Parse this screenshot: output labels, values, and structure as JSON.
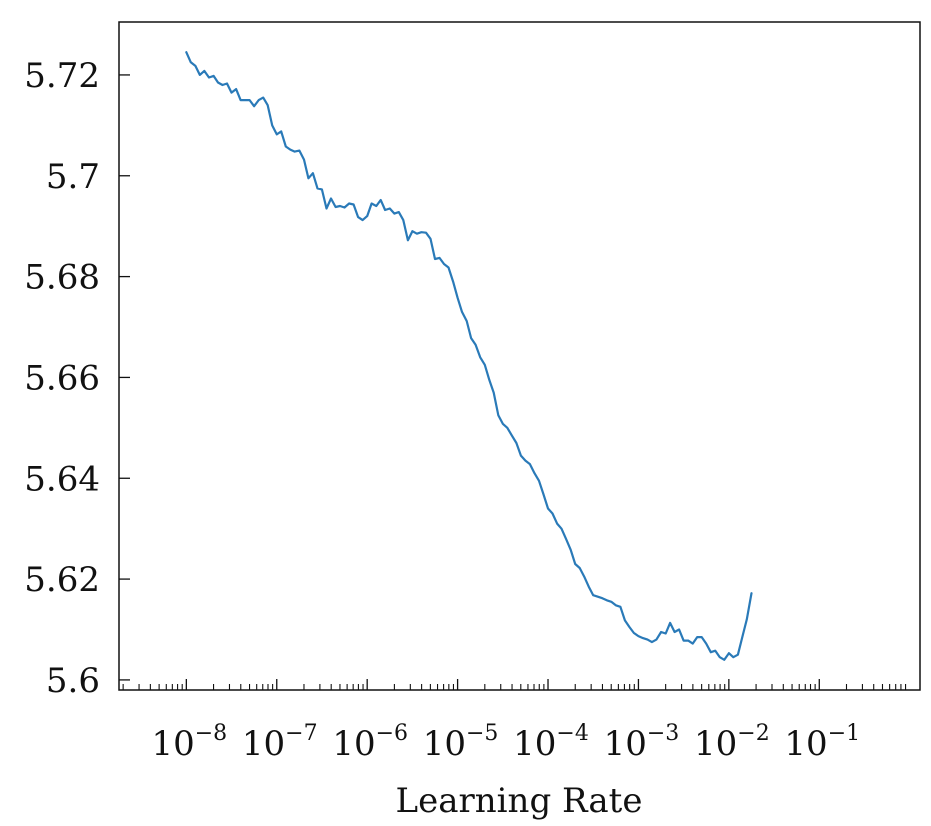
{
  "chart_data": {
    "type": "line",
    "title": "",
    "xlabel": "Learning Rate",
    "ylabel": "",
    "x_scale": "log",
    "xlim": [
      1.8e-09,
      1.3
    ],
    "ylim": [
      5.598,
      5.7305
    ],
    "grid": false,
    "x_ticks": [
      {
        "value": 1e-08,
        "base": "10",
        "exp": "−8"
      },
      {
        "value": 1e-07,
        "base": "10",
        "exp": "−7"
      },
      {
        "value": 1e-06,
        "base": "10",
        "exp": "−6"
      },
      {
        "value": 1e-05,
        "base": "10",
        "exp": "−5"
      },
      {
        "value": 0.0001,
        "base": "10",
        "exp": "−4"
      },
      {
        "value": 0.001,
        "base": "10",
        "exp": "−3"
      },
      {
        "value": 0.01,
        "base": "10",
        "exp": "−2"
      },
      {
        "value": 0.1,
        "base": "10",
        "exp": "−1"
      }
    ],
    "y_ticks": [
      {
        "value": 5.6,
        "label": "5.6"
      },
      {
        "value": 5.62,
        "label": "5.62"
      },
      {
        "value": 5.64,
        "label": "5.64"
      },
      {
        "value": 5.66,
        "label": "5.66"
      },
      {
        "value": 5.68,
        "label": "5.68"
      },
      {
        "value": 5.7,
        "label": "5.7"
      },
      {
        "value": 5.72,
        "label": "5.72"
      }
    ],
    "series": [
      {
        "color": "#2a7ab8",
        "points": [
          [
            1e-08,
            5.7245
          ],
          [
            1.12e-08,
            5.7225
          ],
          [
            1.26e-08,
            5.7218
          ],
          [
            1.41e-08,
            5.72
          ],
          [
            1.58e-08,
            5.7208
          ],
          [
            1.78e-08,
            5.7195
          ],
          [
            2e-08,
            5.7198
          ],
          [
            2.24e-08,
            5.7185
          ],
          [
            2.51e-08,
            5.718
          ],
          [
            2.82e-08,
            5.7183
          ],
          [
            3.16e-08,
            5.7165
          ],
          [
            3.55e-08,
            5.7172
          ],
          [
            3.98e-08,
            5.715
          ],
          [
            4.47e-08,
            5.715
          ],
          [
            5.01e-08,
            5.715
          ],
          [
            5.62e-08,
            5.7138
          ],
          [
            6.31e-08,
            5.715
          ],
          [
            7.08e-08,
            5.7155
          ],
          [
            7.94e-08,
            5.714
          ],
          [
            8.91e-08,
            5.71
          ],
          [
            1e-07,
            5.7082
          ],
          [
            1.12e-07,
            5.7088
          ],
          [
            1.26e-07,
            5.7058
          ],
          [
            1.41e-07,
            5.7052
          ],
          [
            1.58e-07,
            5.7048
          ],
          [
            1.78e-07,
            5.705
          ],
          [
            2e-07,
            5.7032
          ],
          [
            2.24e-07,
            5.6995
          ],
          [
            2.51e-07,
            5.7005
          ],
          [
            2.82e-07,
            5.6975
          ],
          [
            3.16e-07,
            5.6973
          ],
          [
            3.55e-07,
            5.6935
          ],
          [
            3.98e-07,
            5.6955
          ],
          [
            4.47e-07,
            5.6938
          ],
          [
            5.01e-07,
            5.694
          ],
          [
            5.62e-07,
            5.6937
          ],
          [
            6.31e-07,
            5.6945
          ],
          [
            7.08e-07,
            5.6943
          ],
          [
            7.94e-07,
            5.6918
          ],
          [
            8.91e-07,
            5.6912
          ],
          [
            1e-06,
            5.692
          ],
          [
            1.12e-06,
            5.6945
          ],
          [
            1.26e-06,
            5.694
          ],
          [
            1.41e-06,
            5.6952
          ],
          [
            1.58e-06,
            5.6932
          ],
          [
            1.78e-06,
            5.6935
          ],
          [
            2e-06,
            5.6925
          ],
          [
            2.24e-06,
            5.6928
          ],
          [
            2.51e-06,
            5.6912
          ],
          [
            2.82e-06,
            5.6872
          ],
          [
            3.16e-06,
            5.689
          ],
          [
            3.55e-06,
            5.6885
          ],
          [
            3.98e-06,
            5.6888
          ],
          [
            4.47e-06,
            5.6887
          ],
          [
            5.01e-06,
            5.6875
          ],
          [
            5.62e-06,
            5.6835
          ],
          [
            6.31e-06,
            5.6837
          ],
          [
            7.08e-06,
            5.6825
          ],
          [
            7.94e-06,
            5.6818
          ],
          [
            8.91e-06,
            5.679
          ],
          [
            1e-05,
            5.6758
          ],
          [
            1.12e-05,
            5.673
          ],
          [
            1.26e-05,
            5.6712
          ],
          [
            1.41e-05,
            5.6678
          ],
          [
            1.58e-05,
            5.6665
          ],
          [
            1.78e-05,
            5.664
          ],
          [
            2e-05,
            5.6625
          ],
          [
            2.24e-05,
            5.6595
          ],
          [
            2.51e-05,
            5.657
          ],
          [
            2.82e-05,
            5.6525
          ],
          [
            3.16e-05,
            5.6508
          ],
          [
            3.55e-05,
            5.65
          ],
          [
            3.98e-05,
            5.6485
          ],
          [
            4.47e-05,
            5.647
          ],
          [
            5.01e-05,
            5.6445
          ],
          [
            5.62e-05,
            5.6435
          ],
          [
            6.31e-05,
            5.6428
          ],
          [
            7.08e-05,
            5.641
          ],
          [
            7.94e-05,
            5.6395
          ],
          [
            8.91e-05,
            5.6368
          ],
          [
            0.0001,
            5.634
          ],
          [
            0.000112,
            5.633
          ],
          [
            0.000126,
            5.631
          ],
          [
            0.000141,
            5.63
          ],
          [
            0.000158,
            5.628
          ],
          [
            0.000178,
            5.6258
          ],
          [
            0.0002,
            5.623
          ],
          [
            0.000224,
            5.6222
          ],
          [
            0.000251,
            5.6205
          ],
          [
            0.000282,
            5.6185
          ],
          [
            0.000316,
            5.6168
          ],
          [
            0.000355,
            5.6165
          ],
          [
            0.000398,
            5.6162
          ],
          [
            0.000447,
            5.6158
          ],
          [
            0.000501,
            5.6155
          ],
          [
            0.000562,
            5.6148
          ],
          [
            0.000631,
            5.6145
          ],
          [
            0.000708,
            5.6118
          ],
          [
            0.000794,
            5.6105
          ],
          [
            0.000891,
            5.6093
          ],
          [
            0.001,
            5.6087
          ],
          [
            0.00112,
            5.6083
          ],
          [
            0.00126,
            5.608
          ],
          [
            0.00141,
            5.6075
          ],
          [
            0.00158,
            5.608
          ],
          [
            0.00178,
            5.6095
          ],
          [
            0.002,
            5.6092
          ],
          [
            0.00224,
            5.6113
          ],
          [
            0.00251,
            5.6095
          ],
          [
            0.00282,
            5.61
          ],
          [
            0.00316,
            5.6078
          ],
          [
            0.00355,
            5.6078
          ],
          [
            0.00398,
            5.6072
          ],
          [
            0.00447,
            5.6085
          ],
          [
            0.00501,
            5.6085
          ],
          [
            0.00562,
            5.6072
          ],
          [
            0.00631,
            5.6055
          ],
          [
            0.00708,
            5.6058
          ],
          [
            0.00794,
            5.6045
          ],
          [
            0.00891,
            5.604
          ],
          [
            0.01,
            5.6053
          ],
          [
            0.0112,
            5.6045
          ],
          [
            0.0126,
            5.605
          ],
          [
            0.0141,
            5.6085
          ],
          [
            0.0158,
            5.612
          ],
          [
            0.0178,
            5.6172
          ]
        ]
      }
    ]
  }
}
